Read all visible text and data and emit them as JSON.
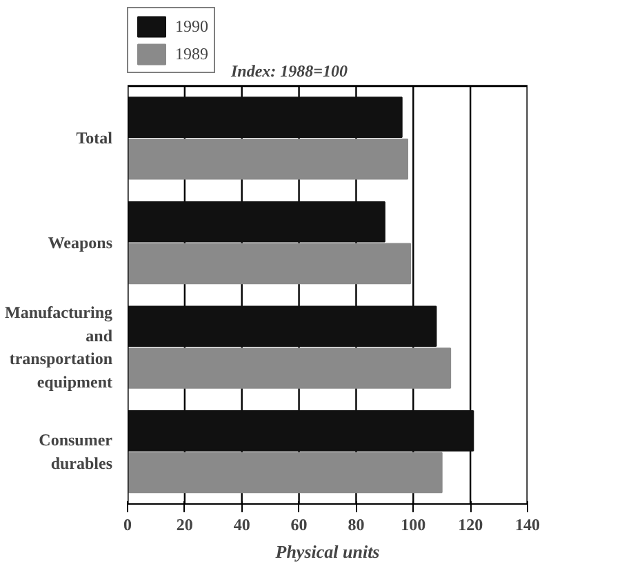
{
  "chart_data": {
    "type": "bar",
    "orientation": "horizontal",
    "subtitle": "Index: 1988=100",
    "xlabel": "Physical units",
    "categories": [
      "Total",
      "Weapons",
      "Manufacturing and transportation equipment",
      "Consumer durables"
    ],
    "series": [
      {
        "name": "1990",
        "color": "#111111",
        "values": [
          96,
          90,
          108,
          121
        ]
      },
      {
        "name": "1989",
        "color": "#8a8a8a",
        "values": [
          98,
          99,
          113,
          110
        ]
      }
    ],
    "xlim": [
      0,
      140
    ],
    "xticks": [
      0,
      20,
      40,
      60,
      80,
      100,
      120,
      140
    ],
    "grid": "x",
    "legend": "top left"
  }
}
